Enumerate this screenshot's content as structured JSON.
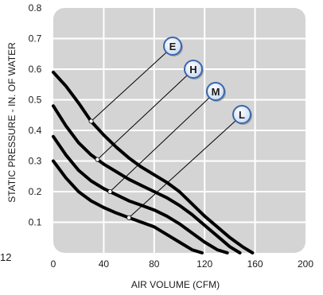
{
  "page_number": "12",
  "chart_data": {
    "type": "line",
    "xlabel": "AIR VOLUME (CFM)",
    "ylabel": "STATIC PRESSURE - IN. OF WATER",
    "xlim": [
      0,
      200
    ],
    "ylim": [
      0,
      0.8
    ],
    "x_ticks": [
      "0",
      "40",
      "80",
      "120",
      "160",
      "200"
    ],
    "y_ticks": [
      "0.1",
      "0.2",
      "0.3",
      "0.4",
      "0.5",
      "0.6",
      "0.7",
      "0.8"
    ],
    "grid": true,
    "colors": {
      "plot_background": "#d4d4d4",
      "grid": "#ffffff",
      "curve": "#000000",
      "marker_fill": "#e4ecf7",
      "marker_edge": "#3a66b0"
    },
    "series": [
      {
        "name": "E",
        "marker_at": [
          30,
          0.43
        ],
        "x": [
          0,
          10,
          20,
          30,
          40,
          50,
          60,
          70,
          80,
          90,
          100,
          110,
          120,
          130,
          140,
          150,
          158
        ],
        "y": [
          0.59,
          0.545,
          0.49,
          0.43,
          0.385,
          0.345,
          0.31,
          0.28,
          0.255,
          0.23,
          0.2,
          0.16,
          0.12,
          0.085,
          0.05,
          0.02,
          0
        ]
      },
      {
        "name": "H",
        "marker_at": [
          35,
          0.305
        ],
        "x": [
          0,
          10,
          20,
          30,
          40,
          50,
          60,
          70,
          80,
          90,
          100,
          110,
          120,
          130,
          140,
          148
        ],
        "y": [
          0.48,
          0.415,
          0.36,
          0.32,
          0.29,
          0.265,
          0.24,
          0.22,
          0.2,
          0.18,
          0.155,
          0.125,
          0.09,
          0.055,
          0.02,
          0
        ]
      },
      {
        "name": "M",
        "marker_at": [
          45,
          0.2
        ],
        "x": [
          0,
          10,
          20,
          30,
          40,
          50,
          60,
          70,
          80,
          90,
          100,
          110,
          120,
          130,
          138
        ],
        "y": [
          0.38,
          0.32,
          0.27,
          0.235,
          0.21,
          0.19,
          0.17,
          0.155,
          0.14,
          0.12,
          0.095,
          0.065,
          0.035,
          0.01,
          0
        ]
      },
      {
        "name": "L",
        "marker_at": [
          60,
          0.115
        ],
        "x": [
          0,
          10,
          20,
          30,
          40,
          50,
          60,
          70,
          80,
          90,
          100,
          110,
          118
        ],
        "y": [
          0.3,
          0.245,
          0.2,
          0.17,
          0.148,
          0.13,
          0.115,
          0.1,
          0.085,
          0.06,
          0.035,
          0.01,
          0
        ]
      }
    ]
  }
}
